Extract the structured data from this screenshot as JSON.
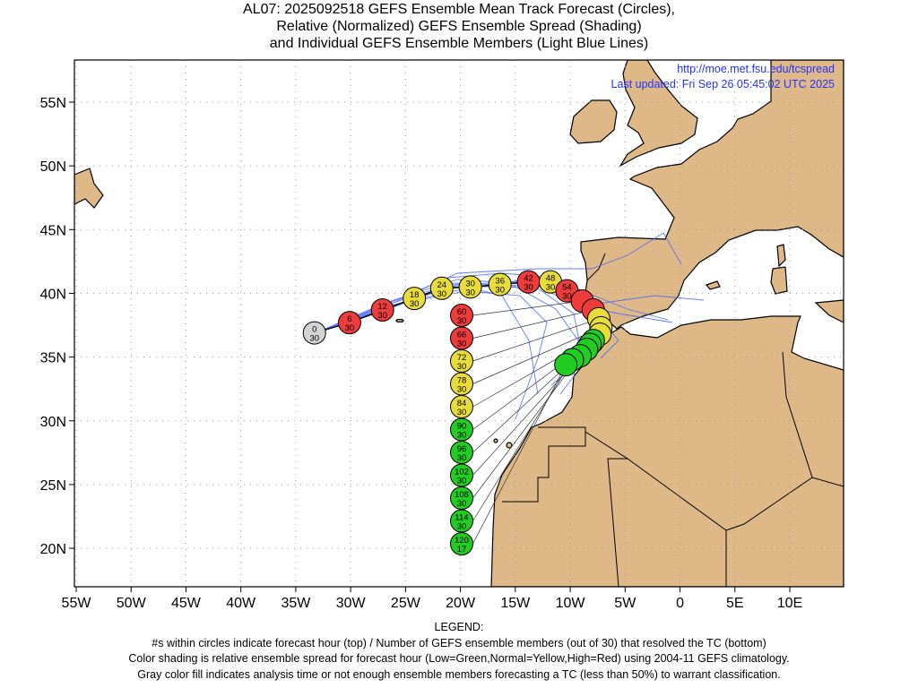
{
  "title": {
    "line1": "AL07: 2025092518 GEFS Ensemble Mean Track Forecast (Circles),",
    "line2": "Relative (Normalized) GEFS Ensemble Spread (Shading)",
    "line3": "and Individual GEFS Ensemble Members (Light Blue Lines)"
  },
  "map_info": {
    "url": "http://moe.met.fsu.edu/tcspread",
    "updated": "Last updated: Fri Sep 26 05:45:02 UTC 2025"
  },
  "axes": {
    "lon_ticks": [
      {
        "lon": -55,
        "label": "55W"
      },
      {
        "lon": -50,
        "label": "50W"
      },
      {
        "lon": -45,
        "label": "45W"
      },
      {
        "lon": -40,
        "label": "40W"
      },
      {
        "lon": -35,
        "label": "35W"
      },
      {
        "lon": -30,
        "label": "30W"
      },
      {
        "lon": -25,
        "label": "25W"
      },
      {
        "lon": -20,
        "label": "20W"
      },
      {
        "lon": -15,
        "label": "15W"
      },
      {
        "lon": -10,
        "label": "10W"
      },
      {
        "lon": -5,
        "label": "5W"
      },
      {
        "lon": 0,
        "label": "0"
      },
      {
        "lon": 5,
        "label": "5E"
      },
      {
        "lon": 10,
        "label": "10E"
      }
    ],
    "lat_ticks": [
      {
        "lat": 55,
        "label": "55N"
      },
      {
        "lat": 50,
        "label": "50N"
      },
      {
        "lat": 45,
        "label": "45N"
      },
      {
        "lat": 40,
        "label": "40N"
      },
      {
        "lat": 35,
        "label": "35N"
      },
      {
        "lat": 30,
        "label": "30N"
      },
      {
        "lat": 25,
        "label": "25N"
      },
      {
        "lat": 20,
        "label": "20N"
      }
    ],
    "lon_range": [
      -55.2,
      14.9
    ],
    "lat_range": [
      17.0,
      58.3
    ]
  },
  "colors": {
    "low": "#22cc22",
    "normal": "#e8dc3a",
    "high": "#ee3b3b",
    "gray": "#d3d3d3",
    "land": "#deb887",
    "members": "#4466ff"
  },
  "track": [
    {
      "hour": "0",
      "members": "30",
      "spread": "gray",
      "lon": -33.3,
      "lat": 36.9
    },
    {
      "hour": "6",
      "members": "30",
      "spread": "high",
      "lon": -30.1,
      "lat": 37.7
    },
    {
      "hour": "12",
      "members": "30",
      "spread": "high",
      "lon": -27.1,
      "lat": 38.7
    },
    {
      "hour": "18",
      "members": "30",
      "spread": "normal",
      "lon": -24.2,
      "lat": 39.6
    },
    {
      "hour": "24",
      "members": "30",
      "spread": "normal",
      "lon": -21.7,
      "lat": 40.4
    },
    {
      "hour": "30",
      "members": "30",
      "spread": "normal",
      "lon": -19.1,
      "lat": 40.5
    },
    {
      "hour": "36",
      "members": "30",
      "spread": "normal",
      "lon": -16.4,
      "lat": 40.7
    },
    {
      "hour": "42",
      "members": "30",
      "spread": "high",
      "lon": -13.8,
      "lat": 40.9
    },
    {
      "hour": "48",
      "members": "30",
      "spread": "normal",
      "lon": -11.8,
      "lat": 40.9
    },
    {
      "hour": "54",
      "members": "30",
      "spread": "high",
      "lon": -10.3,
      "lat": 40.2
    },
    {
      "hour": "60",
      "members": "30",
      "spread": "high",
      "lon": -8.9,
      "lat": 39.4
    },
    {
      "hour": "66",
      "members": "30",
      "spread": "high",
      "lon": -7.9,
      "lat": 38.7
    },
    {
      "hour": "72",
      "members": "30",
      "spread": "normal",
      "lon": -7.4,
      "lat": 38.0
    },
    {
      "hour": "78",
      "members": "30",
      "spread": "normal",
      "lon": -7.2,
      "lat": 37.3
    },
    {
      "hour": "84",
      "members": "30",
      "spread": "normal",
      "lon": -7.3,
      "lat": 36.8
    },
    {
      "hour": "90",
      "members": "30",
      "spread": "low",
      "lon": -7.9,
      "lat": 36.3
    },
    {
      "hour": "96",
      "members": "30",
      "spread": "low",
      "lon": -8.2,
      "lat": 36.0
    },
    {
      "hour": "102",
      "members": "30",
      "spread": "low",
      "lon": -8.5,
      "lat": 35.6
    },
    {
      "hour": "108",
      "members": "30",
      "spread": "low",
      "lon": -9.1,
      "lat": 35.1
    },
    {
      "hour": "114",
      "members": "30",
      "spread": "low",
      "lon": -9.8,
      "lat": 34.8
    },
    {
      "hour": "120",
      "members": "17",
      "spread": "low",
      "lon": -10.4,
      "lat": 34.4
    }
  ],
  "legend": {
    "heading": "LEGEND:",
    "line1": "#s within circles indicate forecast hour (top) / Number of GEFS ensemble members (out of 30) that resolved the TC (bottom)",
    "line2": "Color shading is relative ensemble spread for forecast hour (Low=Green,Normal=Yellow,High=Red) using 2004-11 GEFS climatology.",
    "line3": "Gray color fill indicates analysis time or not enough ensemble members forecasting a TC (less than 50%) to warrant classification."
  }
}
